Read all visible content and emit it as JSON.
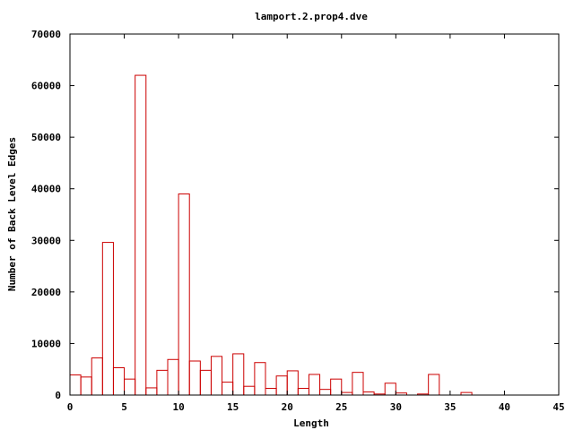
{
  "chart_data": {
    "type": "bar",
    "title": "lamport.2.prop4.dve",
    "xlabel": "Length",
    "ylabel": "Number of Back Level Edges",
    "xlim": [
      0,
      45
    ],
    "ylim": [
      0,
      70000
    ],
    "x_ticks": [
      "0",
      "5",
      "10",
      "15",
      "20",
      "25",
      "30",
      "35",
      "40",
      "45"
    ],
    "y_ticks": [
      "0",
      "10000",
      "20000",
      "30000",
      "40000",
      "50000",
      "60000",
      "70000"
    ],
    "bar_color": "#cc0000",
    "grid": false,
    "bin_width": 1,
    "x": [
      0,
      1,
      2,
      3,
      4,
      5,
      6,
      7,
      8,
      9,
      10,
      11,
      12,
      13,
      14,
      15,
      16,
      17,
      18,
      19,
      20,
      21,
      22,
      23,
      24,
      25,
      26,
      27,
      28,
      29,
      30,
      31,
      32,
      33,
      34,
      35,
      36
    ],
    "values": [
      3900,
      3500,
      7200,
      29600,
      5300,
      3100,
      62000,
      1400,
      4800,
      6900,
      39000,
      6600,
      4800,
      7500,
      2500,
      8000,
      1700,
      6300,
      1300,
      3700,
      4700,
      1300,
      4000,
      1100,
      3100,
      500,
      4400,
      600,
      200,
      2300,
      400,
      0,
      200,
      4000,
      0,
      0,
      500
    ]
  }
}
